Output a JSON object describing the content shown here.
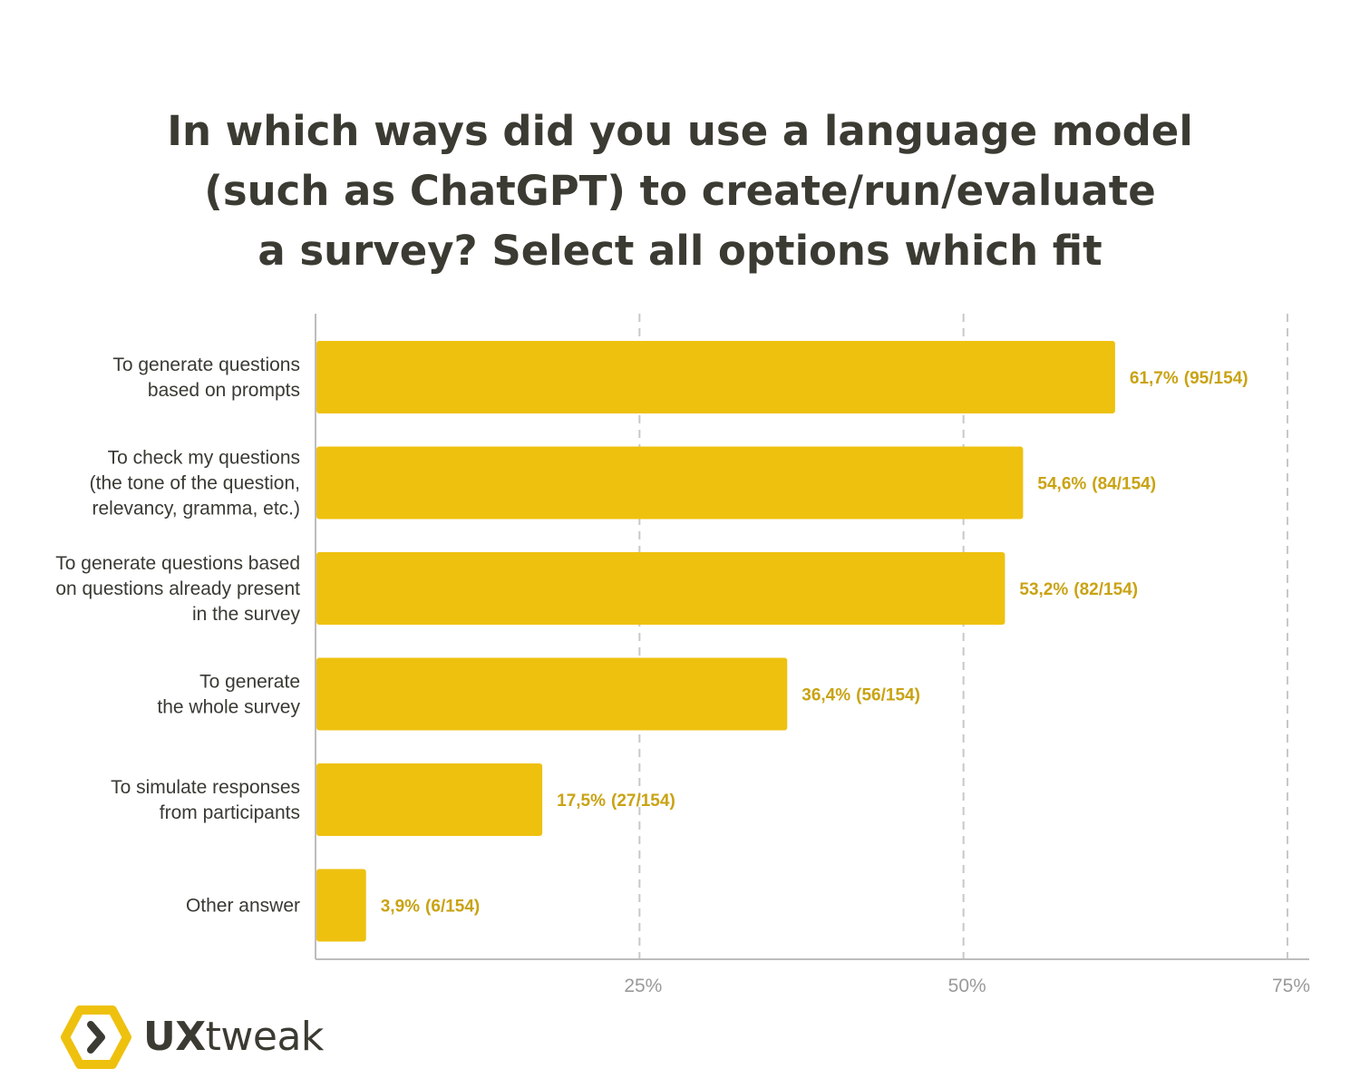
{
  "title_lines": [
    "In which ways did you use a language model",
    "(such as ChatGPT) to create/run/evaluate",
    "a survey? Select all options which fit"
  ],
  "logo": {
    "text_bold": "UX",
    "text_regular": "tweak",
    "icon": "hexagon-chevron-icon",
    "color": "#eec10f"
  },
  "chart_data": {
    "type": "bar",
    "orientation": "horizontal",
    "categories": [
      [
        "To generate questions",
        "based on prompts"
      ],
      [
        "To check my questions",
        "(the tone of the question,",
        "relevancy, gramma, etc.)"
      ],
      [
        "To generate questions based",
        "on questions already present",
        "in the survey"
      ],
      [
        "To generate",
        "the whole survey"
      ],
      [
        "To simulate responses",
        "from participants"
      ],
      [
        "Other answer"
      ]
    ],
    "values": [
      61.7,
      54.6,
      53.2,
      36.4,
      17.5,
      3.9
    ],
    "value_labels": [
      "61,7%",
      "54,6%",
      "53,2%",
      "36,4%",
      "17,5%",
      "3,9%"
    ],
    "count_labels": [
      "(95/154)",
      "(84/154)",
      "(82/154)",
      "(56/154)",
      "(27/154)",
      "(6/154)"
    ],
    "xlim": [
      0,
      75
    ],
    "xticks": [
      25,
      50,
      75
    ],
    "xtick_labels": [
      "25%",
      "50%",
      "75%"
    ],
    "grid": "vertical dashed",
    "bar_color": "#eec10f",
    "label_color": "#c9a313",
    "grid_color": "#c8c8c8"
  }
}
